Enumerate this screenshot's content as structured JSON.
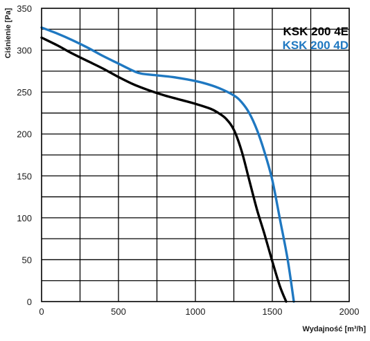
{
  "chart_data": {
    "type": "line",
    "title": "",
    "xlabel": "Wydajność [m³/h]",
    "ylabel": "Ciśnienie [Pa]",
    "xlim": [
      0,
      2000
    ],
    "ylim": [
      0,
      350
    ],
    "x_ticks": [
      0,
      500,
      1000,
      1500,
      2000
    ],
    "y_ticks": [
      0,
      50,
      100,
      150,
      200,
      250,
      300,
      350
    ],
    "x_minor_step": 250,
    "y_minor_step": 25,
    "grid": true,
    "legend_position": "top-right",
    "series": [
      {
        "name": "KSK 200 4E",
        "color": "#000000",
        "points": [
          [
            0,
            315
          ],
          [
            100,
            306
          ],
          [
            200,
            296
          ],
          [
            300,
            287
          ],
          [
            400,
            278
          ],
          [
            500,
            268
          ],
          [
            600,
            259
          ],
          [
            700,
            252
          ],
          [
            800,
            246
          ],
          [
            900,
            241
          ],
          [
            1000,
            236
          ],
          [
            1100,
            230
          ],
          [
            1150,
            225
          ],
          [
            1200,
            218
          ],
          [
            1250,
            205
          ],
          [
            1300,
            180
          ],
          [
            1350,
            145
          ],
          [
            1400,
            110
          ],
          [
            1450,
            80
          ],
          [
            1500,
            48
          ],
          [
            1550,
            18
          ],
          [
            1590,
            0
          ]
        ]
      },
      {
        "name": "KSK 200 4D",
        "color": "#1f78c1",
        "points": [
          [
            0,
            327
          ],
          [
            100,
            320
          ],
          [
            200,
            312
          ],
          [
            300,
            303
          ],
          [
            400,
            293
          ],
          [
            500,
            284
          ],
          [
            600,
            275
          ],
          [
            650,
            272
          ],
          [
            750,
            270
          ],
          [
            850,
            268
          ],
          [
            950,
            265
          ],
          [
            1050,
            261
          ],
          [
            1150,
            255
          ],
          [
            1250,
            246
          ],
          [
            1300,
            238
          ],
          [
            1350,
            225
          ],
          [
            1400,
            205
          ],
          [
            1450,
            178
          ],
          [
            1500,
            145
          ],
          [
            1550,
            98
          ],
          [
            1600,
            50
          ],
          [
            1640,
            0
          ]
        ]
      }
    ]
  }
}
